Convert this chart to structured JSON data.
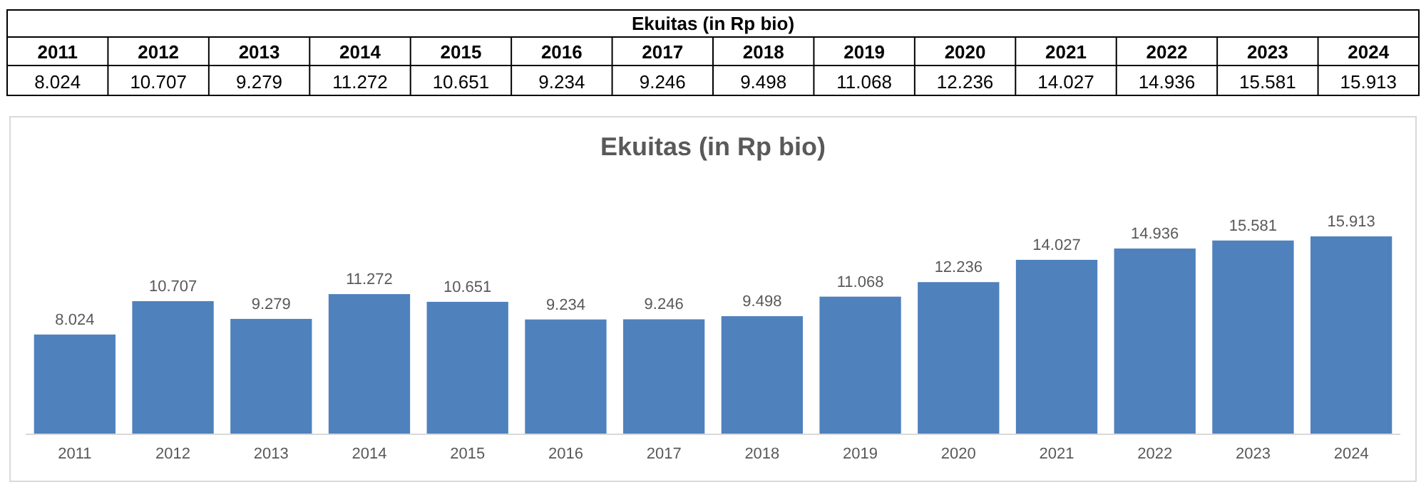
{
  "chart_data": {
    "type": "bar",
    "title": "Ekuitas (in Rp bio)",
    "categories": [
      "2011",
      "2012",
      "2013",
      "2014",
      "2015",
      "2016",
      "2017",
      "2018",
      "2019",
      "2020",
      "2021",
      "2022",
      "2023",
      "2024"
    ],
    "values": [
      8024,
      10707,
      9279,
      11272,
      10651,
      9234,
      9246,
      9498,
      11068,
      12236,
      14027,
      14936,
      15581,
      15913
    ],
    "value_labels": [
      "8.024",
      "10.707",
      "9.279",
      "11.272",
      "10.651",
      "9.234",
      "9.246",
      "9.498",
      "11.068",
      "12.236",
      "14.027",
      "14.936",
      "15.581",
      "15.913"
    ],
    "color": "#4f81bd"
  }
}
